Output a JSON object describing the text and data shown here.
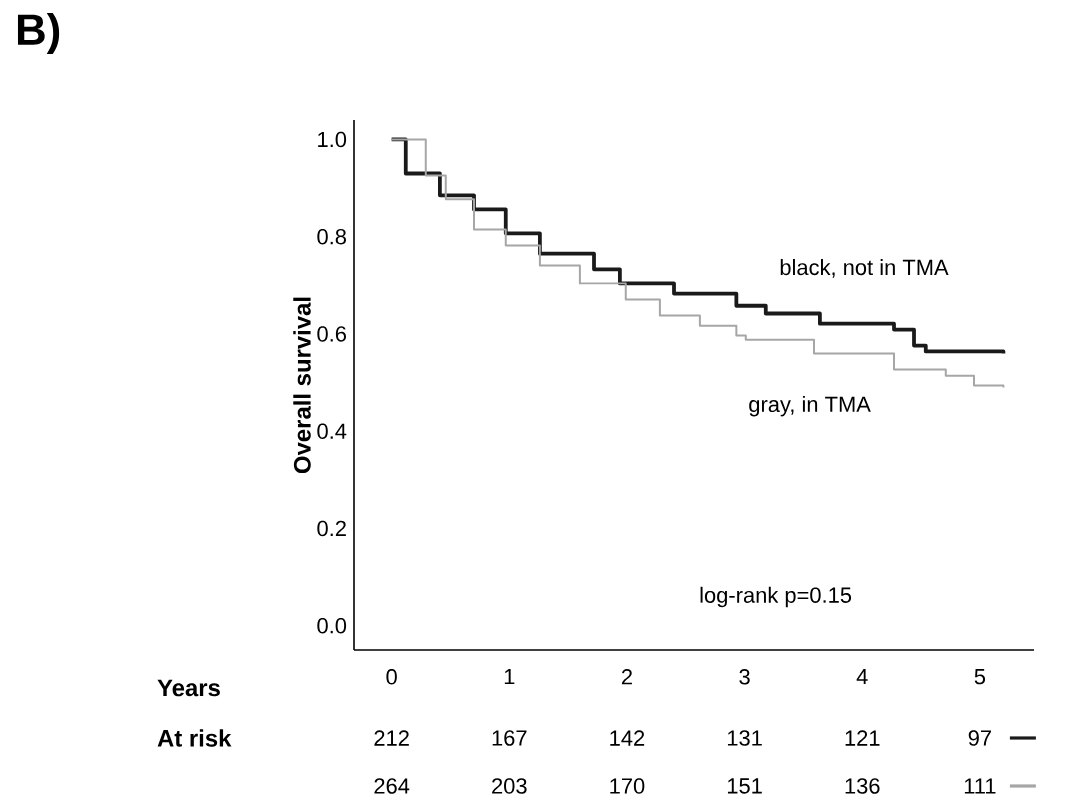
{
  "chart_data": {
    "type": "step",
    "title": "B)",
    "xlabel": "Years",
    "ylabel": "Overall survival",
    "xlim": [
      -0.32,
      5.46
    ],
    "ylim": [
      -0.05,
      1.04
    ],
    "xticks": [
      0,
      1,
      2,
      3,
      4,
      5
    ],
    "yticks": [
      {
        "value": 0,
        "label": "0.0"
      },
      {
        "value": 0.2,
        "label": "0.2"
      },
      {
        "value": 0.4,
        "label": "0.4"
      },
      {
        "value": 0.6,
        "label": "0.6"
      },
      {
        "value": 0.8,
        "label": "0.8"
      },
      {
        "value": 1,
        "label": "1.0"
      }
    ],
    "series": [
      {
        "name": "black, not in TMA",
        "color": "#1a1a1a",
        "x": [
          0,
          0.12,
          0.41,
          0.7,
          0.97,
          1.26,
          1.72,
          1.94,
          2.4,
          2.93,
          3.18,
          3.64,
          4.27,
          4.44,
          4.54,
          5.2
        ],
        "values": [
          1.0,
          0.93,
          0.885,
          0.856,
          0.807,
          0.765,
          0.733,
          0.704,
          0.683,
          0.658,
          0.642,
          0.621,
          0.609,
          0.576,
          0.564,
          0.56
        ]
      },
      {
        "name": "gray, in TMA",
        "color": "#a6a6a6",
        "x": [
          0,
          0.29,
          0.46,
          0.7,
          0.97,
          1.26,
          1.6,
          1.99,
          2.28,
          2.62,
          2.93,
          3.01,
          3.59,
          4.27,
          4.71,
          4.95,
          5.2
        ],
        "values": [
          1.0,
          0.926,
          0.877,
          0.815,
          0.782,
          0.741,
          0.704,
          0.671,
          0.638,
          0.617,
          0.597,
          0.588,
          0.56,
          0.527,
          0.514,
          0.494,
          0.49
        ]
      }
    ],
    "annotations": [
      "log-rank p=0.15",
      "At risk",
      "212",
      "167",
      "142",
      "131",
      "121",
      "97",
      "264",
      "203",
      "170",
      "151",
      "136",
      "111"
    ],
    "legend": false,
    "grid": false
  }
}
